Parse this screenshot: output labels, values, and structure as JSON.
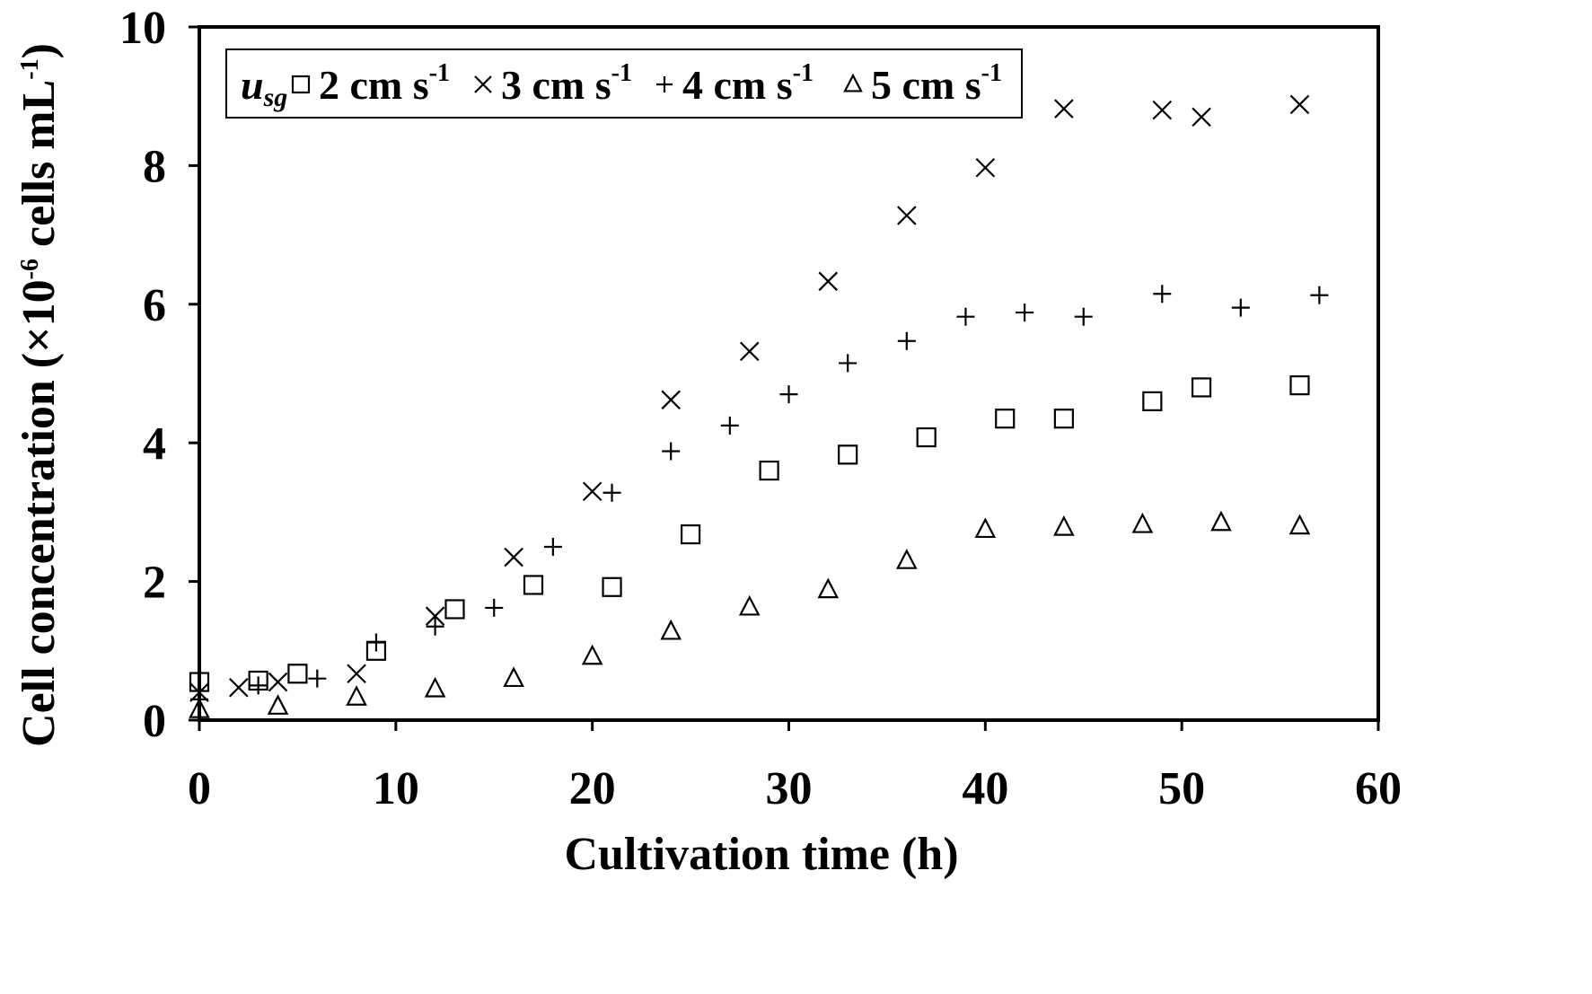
{
  "chart_data": {
    "type": "scatter",
    "title": "",
    "xlabel": "Cultivation time (h)",
    "ylabel": {
      "base": "Cell concentration (×10",
      "exp": "-6",
      "mid": " cells mL",
      "exp2": "-1",
      "end": ")"
    },
    "xlim": [
      0,
      60
    ],
    "ylim": [
      0,
      10
    ],
    "xticks": [
      "0",
      "10",
      "20",
      "30",
      "40",
      "50",
      "60"
    ],
    "yticks": [
      "0",
      "2",
      "4",
      "6",
      "8",
      "10"
    ],
    "grid": false,
    "legend_position": "top-left",
    "legend_prefix": {
      "main": "u",
      "sub": "sg"
    },
    "series": [
      {
        "name": "2 cm s-1",
        "label": "2 cm s",
        "label_exp": "-1",
        "marker": "square",
        "x": [
          0,
          3,
          5,
          9,
          13,
          17,
          21,
          25,
          29,
          33,
          37,
          41,
          44,
          48.5,
          51,
          56
        ],
        "y": [
          0.55,
          0.57,
          0.67,
          1.0,
          1.6,
          1.95,
          1.92,
          2.68,
          3.6,
          3.83,
          4.08,
          4.35,
          4.35,
          4.6,
          4.8,
          4.83
        ]
      },
      {
        "name": "3 cm s-1",
        "label": "3 cm s",
        "label_exp": "-1",
        "marker": "x",
        "x": [
          0,
          2,
          4,
          8,
          12,
          16,
          20,
          24,
          28,
          32,
          36,
          40,
          44,
          49,
          51,
          56
        ],
        "y": [
          0.4,
          0.47,
          0.55,
          0.67,
          1.5,
          2.35,
          3.3,
          4.62,
          5.32,
          6.33,
          7.28,
          7.97,
          8.82,
          8.8,
          8.7,
          8.88
        ]
      },
      {
        "name": "4 cm s-1",
        "label": "4 cm s",
        "label_exp": "-1",
        "marker": "plus",
        "x": [
          0,
          3,
          6,
          9,
          12,
          15,
          18,
          21,
          24,
          27,
          30,
          33,
          36,
          39,
          42,
          45,
          49,
          53,
          57
        ],
        "y": [
          0.3,
          0.5,
          0.6,
          1.12,
          1.35,
          1.62,
          2.5,
          3.28,
          3.88,
          4.25,
          4.7,
          5.15,
          5.47,
          5.82,
          5.88,
          5.82,
          6.15,
          5.95,
          6.13
        ]
      },
      {
        "name": "5 cm s-1",
        "label": "5 cm s",
        "label_exp": "-1",
        "marker": "triangle",
        "x": [
          0,
          4,
          8,
          12,
          16,
          20,
          24,
          28,
          32,
          36,
          40,
          44,
          48,
          52,
          56
        ],
        "y": [
          0.15,
          0.2,
          0.33,
          0.45,
          0.6,
          0.92,
          1.28,
          1.63,
          1.88,
          2.3,
          2.75,
          2.78,
          2.82,
          2.85,
          2.8
        ]
      }
    ]
  }
}
